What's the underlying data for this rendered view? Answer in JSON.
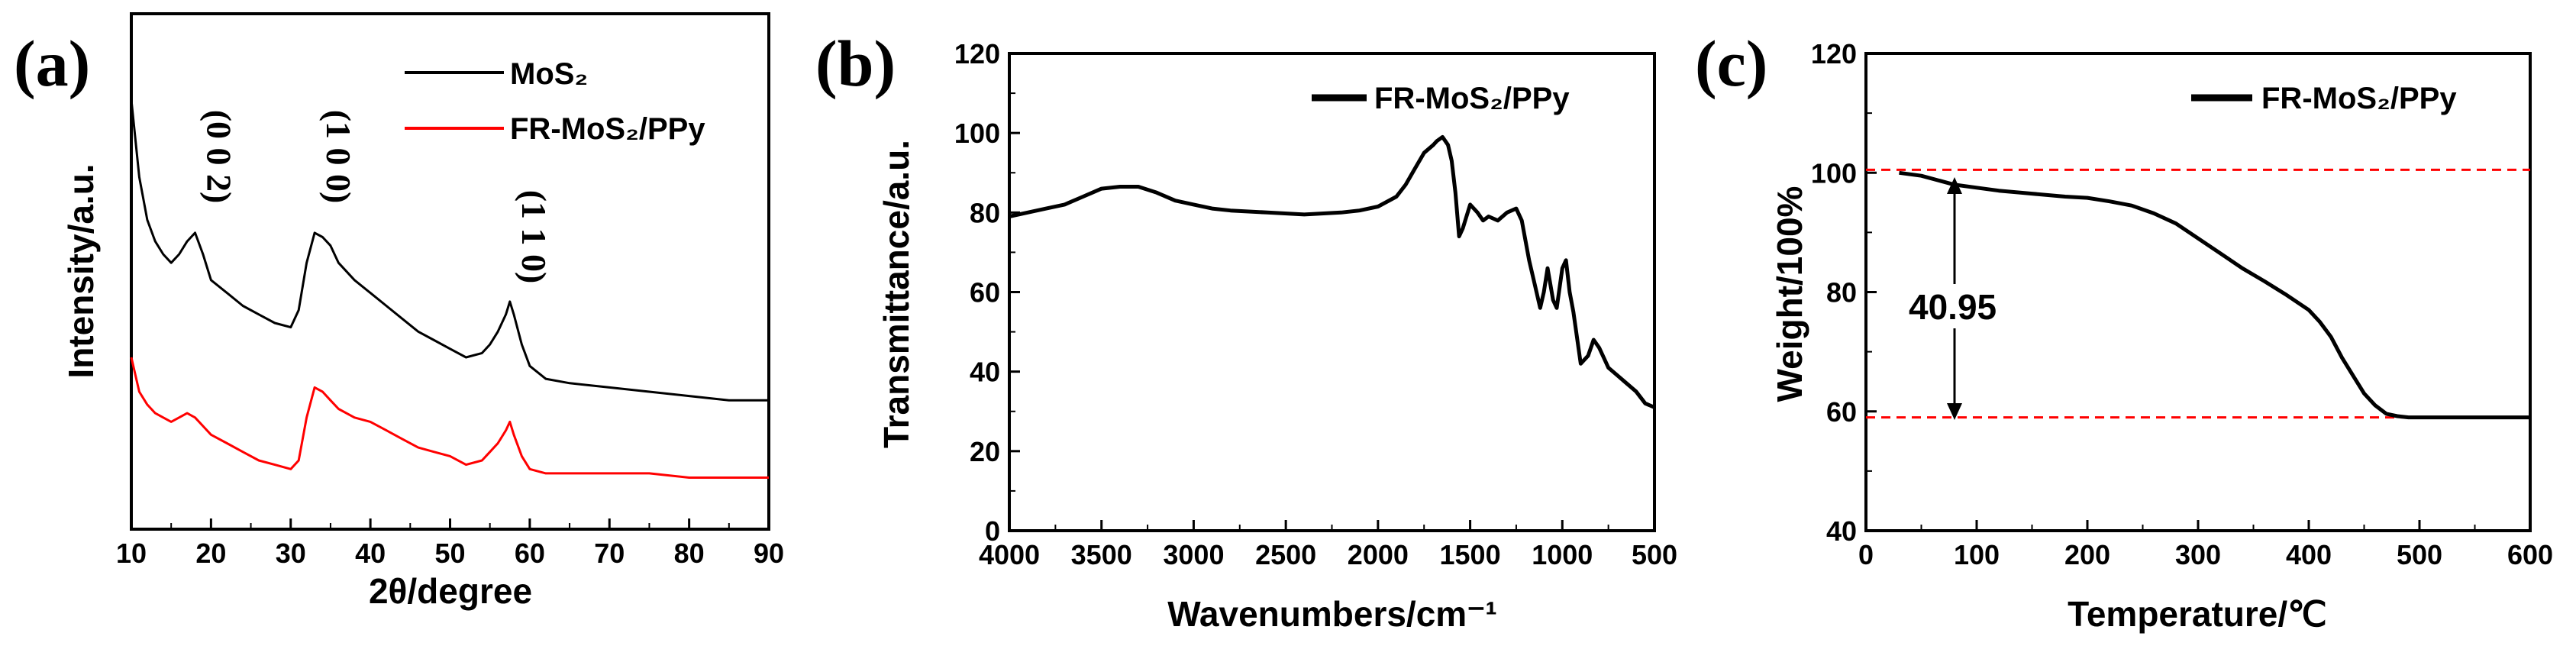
{
  "chart_data": [
    {
      "panel": "(a)",
      "type": "line",
      "xlabel": "2θ/degree",
      "ylabel": "Intensity/a.u.",
      "xlim": [
        10,
        90
      ],
      "xticks": [
        "10",
        "20",
        "30",
        "40",
        "50",
        "60",
        "70",
        "80",
        "90"
      ],
      "yticks": [],
      "legend_position": "top-right",
      "peak_labels": [
        {
          "text": "(0 0 2)",
          "x": 18
        },
        {
          "text": "(1 0 0)",
          "x": 33
        },
        {
          "text": "(1 1 0)",
          "x": 57.5
        }
      ],
      "series": [
        {
          "name": "MoS₂",
          "color": "#000000",
          "x": [
            10,
            11,
            12,
            13,
            14,
            15,
            16,
            17,
            18,
            19,
            20,
            22,
            24,
            26,
            28,
            30,
            31,
            32,
            33,
            34,
            35,
            36,
            38,
            40,
            42,
            44,
            46,
            48,
            50,
            52,
            54,
            55,
            56,
            57,
            57.5,
            58,
            59,
            60,
            62,
            65,
            70,
            75,
            80,
            85,
            90
          ],
          "y": [
            100,
            82,
            72,
            67,
            64,
            62,
            64,
            67,
            69,
            64,
            58,
            55,
            52,
            50,
            48,
            47,
            51,
            62,
            69,
            68,
            66,
            62,
            58,
            55,
            52,
            49,
            46,
            44,
            42,
            40,
            41,
            43,
            46,
            50,
            53,
            50,
            43,
            38,
            35,
            34,
            33,
            32,
            31,
            30,
            30
          ]
        },
        {
          "name": "FR-MoS₂/PPy",
          "color": "#ff0000",
          "x": [
            10,
            11,
            12,
            13,
            14,
            15,
            16,
            17,
            18,
            19,
            20,
            22,
            24,
            26,
            28,
            30,
            31,
            32,
            33,
            34,
            35,
            36,
            38,
            40,
            42,
            44,
            46,
            48,
            50,
            52,
            54,
            55,
            56,
            57,
            57.5,
            58,
            59,
            60,
            62,
            65,
            70,
            75,
            80,
            85,
            90
          ],
          "y": [
            40,
            32,
            29,
            27,
            26,
            25,
            26,
            27,
            26,
            24,
            22,
            20,
            18,
            16,
            15,
            14,
            16,
            26,
            33,
            32,
            30,
            28,
            26,
            25,
            23,
            21,
            19,
            18,
            17,
            15,
            16,
            18,
            20,
            23,
            25,
            22,
            17,
            14,
            13,
            13,
            13,
            13,
            12,
            12,
            12
          ]
        }
      ]
    },
    {
      "panel": "(b)",
      "type": "line",
      "xlabel": "Wavenumbers/cm⁻¹",
      "ylabel": "Transmittance/a.u.",
      "xlim": [
        4000,
        500
      ],
      "ylim": [
        0,
        120
      ],
      "xticks": [
        "4000",
        "3500",
        "3000",
        "2500",
        "2000",
        "1500",
        "1000",
        "500"
      ],
      "yticks": [
        "0",
        "20",
        "40",
        "60",
        "80",
        "100",
        "120"
      ],
      "legend_position": "top-right",
      "series": [
        {
          "name": "FR-MoS₂/PPy",
          "color": "#000000",
          "x": [
            4000,
            3900,
            3800,
            3700,
            3600,
            3500,
            3400,
            3300,
            3200,
            3100,
            3000,
            2900,
            2800,
            2600,
            2400,
            2200,
            2100,
            2000,
            1900,
            1850,
            1800,
            1750,
            1700,
            1680,
            1650,
            1620,
            1600,
            1580,
            1560,
            1540,
            1500,
            1460,
            1430,
            1400,
            1350,
            1300,
            1250,
            1220,
            1200,
            1180,
            1150,
            1120,
            1100,
            1080,
            1050,
            1030,
            1000,
            980,
            960,
            940,
            900,
            860,
            830,
            800,
            770,
            750,
            700,
            650,
            600,
            550,
            500
          ],
          "y": [
            79,
            80,
            81,
            82,
            84,
            86,
            86.5,
            86.5,
            85,
            83,
            82,
            81,
            80.5,
            80,
            79.5,
            80,
            80.5,
            81.5,
            84,
            87,
            91,
            95,
            97,
            98,
            99,
            97,
            93,
            85,
            74,
            76,
            82,
            80,
            78,
            79,
            78,
            80,
            81,
            78,
            73,
            68,
            62,
            56,
            60,
            66,
            58,
            56,
            66,
            68,
            60,
            55,
            42,
            44,
            48,
            46,
            43,
            41,
            39,
            37,
            35,
            32,
            31
          ]
        }
      ]
    },
    {
      "panel": "(c)",
      "type": "line",
      "xlabel": "Temperature/℃",
      "ylabel": "Weight/100%",
      "xlim": [
        0,
        600
      ],
      "ylim": [
        40,
        120
      ],
      "xticks": [
        "0",
        "100",
        "200",
        "300",
        "400",
        "500",
        "600"
      ],
      "yticks": [
        "40",
        "60",
        "80",
        "100",
        "120"
      ],
      "legend_position": "top-right",
      "reference_lines": [
        100.5,
        59
      ],
      "annotation": "40.95",
      "series": [
        {
          "name": "FR-MoS₂/PPy",
          "color": "#000000",
          "x": [
            30,
            50,
            80,
            100,
            120,
            150,
            180,
            200,
            220,
            240,
            260,
            280,
            300,
            320,
            340,
            360,
            380,
            400,
            410,
            420,
            430,
            440,
            450,
            460,
            470,
            480,
            490,
            500,
            600
          ],
          "y": [
            100,
            99.5,
            98,
            97.5,
            97,
            96.5,
            96,
            95.8,
            95.2,
            94.5,
            93.2,
            91.5,
            89,
            86.5,
            84,
            81.8,
            79.5,
            77,
            75,
            72.5,
            69,
            66,
            63,
            61,
            59.6,
            59.2,
            59,
            59,
            59
          ]
        }
      ]
    }
  ]
}
